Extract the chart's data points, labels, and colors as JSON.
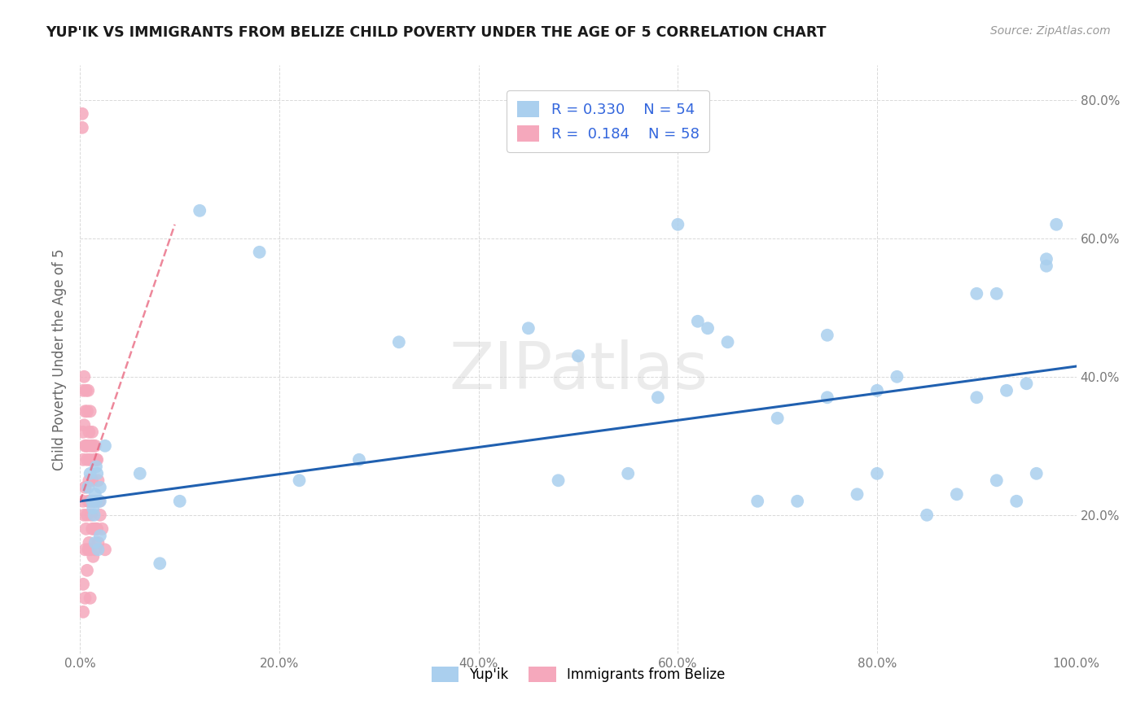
{
  "title": "YUP'IK VS IMMIGRANTS FROM BELIZE CHILD POVERTY UNDER THE AGE OF 5 CORRELATION CHART",
  "source": "Source: ZipAtlas.com",
  "ylabel": "Child Poverty Under the Age of 5",
  "xlim": [
    0,
    1.0
  ],
  "ylim": [
    0,
    0.85
  ],
  "xticks": [
    0.0,
    0.2,
    0.4,
    0.6,
    0.8,
    1.0
  ],
  "xtick_labels": [
    "0.0%",
    "20.0%",
    "40.0%",
    "60.0%",
    "80.0%",
    "100.0%"
  ],
  "yticks": [
    0.0,
    0.2,
    0.4,
    0.6,
    0.8
  ],
  "ytick_labels_right": [
    "",
    "20.0%",
    "40.0%",
    "60.0%",
    "80.0%"
  ],
  "yup_R": 0.33,
  "yup_N": 54,
  "belize_R": 0.184,
  "belize_N": 58,
  "yup_color": "#aacfee",
  "belize_color": "#f5a8bc",
  "trend_yup_color": "#2060b0",
  "trend_belize_color": "#e8607a",
  "background_color": "#ffffff",
  "grid_color": "#d0d0d0",
  "watermark": "ZIPatlas",
  "legend_color": "#3366dd",
  "yup_x": [
    0.008,
    0.01,
    0.012,
    0.013,
    0.014,
    0.015,
    0.015,
    0.016,
    0.016,
    0.017,
    0.018,
    0.02,
    0.02,
    0.02,
    0.025,
    0.06,
    0.08,
    0.1,
    0.12,
    0.18,
    0.22,
    0.28,
    0.32,
    0.45,
    0.48,
    0.5,
    0.55,
    0.58,
    0.6,
    0.62,
    0.63,
    0.65,
    0.68,
    0.7,
    0.72,
    0.75,
    0.75,
    0.78,
    0.8,
    0.8,
    0.82,
    0.85,
    0.88,
    0.9,
    0.9,
    0.92,
    0.92,
    0.93,
    0.94,
    0.95,
    0.96,
    0.97,
    0.97,
    0.98
  ],
  "yup_y": [
    0.24,
    0.26,
    0.22,
    0.21,
    0.2,
    0.23,
    0.16,
    0.22,
    0.27,
    0.26,
    0.15,
    0.22,
    0.24,
    0.17,
    0.3,
    0.26,
    0.13,
    0.22,
    0.64,
    0.58,
    0.25,
    0.28,
    0.45,
    0.47,
    0.25,
    0.43,
    0.26,
    0.37,
    0.62,
    0.48,
    0.47,
    0.45,
    0.22,
    0.34,
    0.22,
    0.46,
    0.37,
    0.23,
    0.38,
    0.26,
    0.4,
    0.2,
    0.23,
    0.37,
    0.52,
    0.52,
    0.25,
    0.38,
    0.22,
    0.39,
    0.26,
    0.56,
    0.57,
    0.62
  ],
  "belize_x": [
    0.002,
    0.002,
    0.003,
    0.003,
    0.003,
    0.003,
    0.003,
    0.003,
    0.004,
    0.004,
    0.004,
    0.005,
    0.005,
    0.005,
    0.005,
    0.005,
    0.006,
    0.006,
    0.006,
    0.007,
    0.007,
    0.007,
    0.007,
    0.008,
    0.008,
    0.008,
    0.008,
    0.009,
    0.009,
    0.009,
    0.01,
    0.01,
    0.01,
    0.01,
    0.01,
    0.011,
    0.011,
    0.012,
    0.012,
    0.012,
    0.013,
    0.013,
    0.013,
    0.014,
    0.014,
    0.015,
    0.015,
    0.015,
    0.016,
    0.016,
    0.017,
    0.017,
    0.018,
    0.018,
    0.019,
    0.02,
    0.022,
    0.025
  ],
  "belize_y": [
    0.78,
    0.76,
    0.38,
    0.32,
    0.28,
    0.22,
    0.1,
    0.06,
    0.4,
    0.33,
    0.2,
    0.35,
    0.3,
    0.24,
    0.15,
    0.08,
    0.38,
    0.3,
    0.18,
    0.35,
    0.28,
    0.2,
    0.12,
    0.38,
    0.3,
    0.22,
    0.15,
    0.32,
    0.25,
    0.16,
    0.35,
    0.28,
    0.22,
    0.15,
    0.08,
    0.3,
    0.2,
    0.32,
    0.25,
    0.18,
    0.3,
    0.22,
    0.14,
    0.28,
    0.18,
    0.3,
    0.22,
    0.15,
    0.28,
    0.18,
    0.28,
    0.18,
    0.25,
    0.16,
    0.22,
    0.2,
    0.18,
    0.15
  ],
  "trend_yup_x0": 0.0,
  "trend_yup_y0": 0.22,
  "trend_yup_x1": 1.0,
  "trend_yup_y1": 0.415,
  "trend_belize_x0": 0.0,
  "trend_belize_y0": 0.22,
  "trend_belize_x1": 0.095,
  "trend_belize_y1": 0.62
}
